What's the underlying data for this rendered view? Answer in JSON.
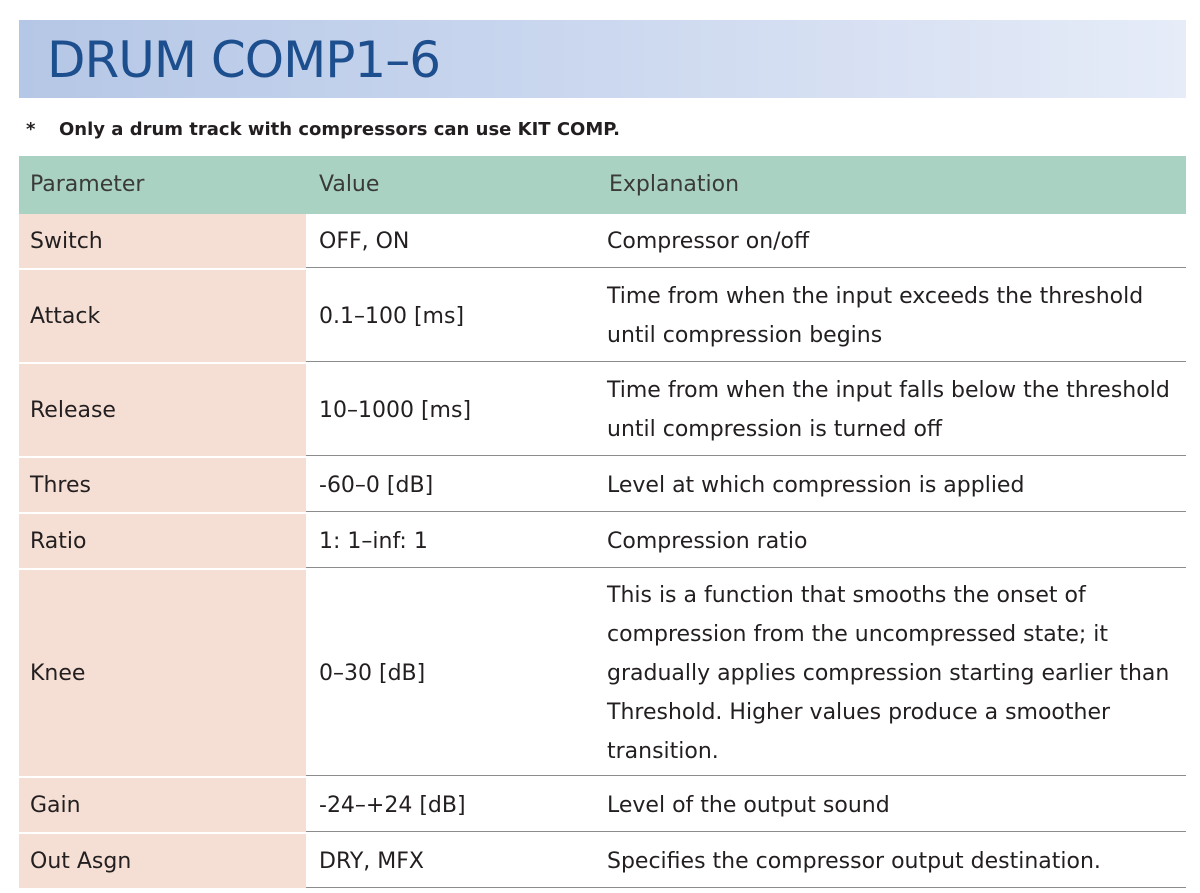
{
  "title": "DRUM COMP1–6",
  "note": {
    "marker": "*",
    "text": "Only a drum track with compressors can use KIT COMP."
  },
  "table": {
    "headers": {
      "parameter": "Parameter",
      "value": "Value",
      "explanation": "Explanation"
    },
    "rows": [
      {
        "parameter": "Switch",
        "value": "OFF, ON",
        "explanation": "Compressor on/off"
      },
      {
        "parameter": "Attack",
        "value": "0.1–100 [ms]",
        "explanation": "Time from when the input exceeds the threshold until compression begins"
      },
      {
        "parameter": "Release",
        "value": "10–1000 [ms]",
        "explanation": "Time from when the input falls below the threshold until compression is turned off"
      },
      {
        "parameter": "Thres",
        "value": "-60–0 [dB]",
        "explanation": "Level at which compression is applied"
      },
      {
        "parameter": "Ratio",
        "value": "1: 1–inf: 1",
        "explanation": "Compression ratio"
      },
      {
        "parameter": "Knee",
        "value": "0–30 [dB]",
        "explanation": "This is a function that smooths the onset of compression from the uncompressed state; it gradually applies compression starting earlier than Threshold. Higher values produce a smoother transition."
      },
      {
        "parameter": "Gain",
        "value": "-24–+24 [dB]",
        "explanation": "Level of the output sound"
      },
      {
        "parameter": "Out Asgn",
        "value": "DRY, MFX",
        "explanation": "Specifies the compressor output destination."
      }
    ]
  },
  "colors": {
    "title_text": "#1d4f8e",
    "banner": "#b5c7e6",
    "header_row": "#a9d2c2",
    "parameter_cell": "#f5dfd4"
  }
}
